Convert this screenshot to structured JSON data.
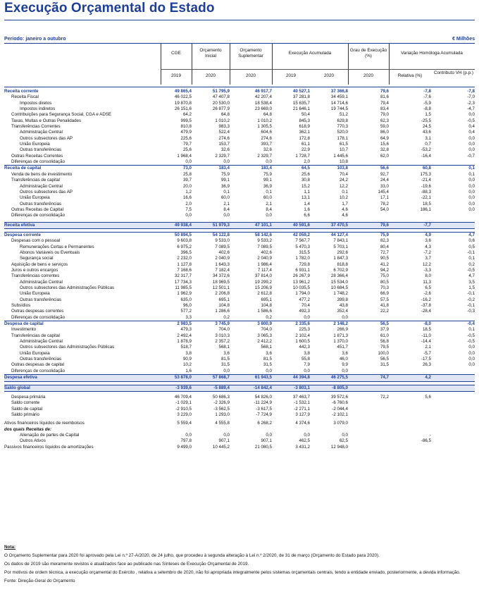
{
  "title": "Execução Orçamental do Estado",
  "period": "Período: janeiro a outubro",
  "units": "€ Milhões",
  "headers": {
    "cge": "CGE",
    "orc_inicial": "Orçamento Inicial",
    "orc_supl": "Orçamento Suplementar",
    "exec_acum": "Execução Acumulada",
    "grau_exec": "Grau de Execução (%)",
    "var_homologa": "Variação Homóloga Acumulada",
    "y2019a": "2019",
    "y2020a": "2020",
    "y2020b": "2020",
    "y2019b": "2019",
    "y2020c": "2020",
    "y2020d": "2020",
    "relativa": "Relativa (%)",
    "contributo": "Contributo VH (p.p.)"
  },
  "rows": [
    {
      "label": "Receita corrente",
      "v": [
        "49 865,4",
        "51 795,9",
        "46 917,7",
        "40 527,1",
        "37 366,8",
        "79,6",
        "-7,8",
        "-7,8"
      ],
      "style": "bold",
      "ind": 0
    },
    {
      "label": "Receita Fiscal",
      "v": [
        "46 022,5",
        "47 407,8",
        "42 207,4",
        "37 281,8",
        "34 459,1",
        "81,6",
        "-7,6",
        "-7,0"
      ],
      "ind": 1
    },
    {
      "label": "Impostos diretos",
      "v": [
        "19 870,8",
        "20 530,0",
        "18 538,4",
        "15 635,7",
        "14 714,6",
        "79,4",
        "-5,9",
        "-2,3"
      ],
      "ind": 2
    },
    {
      "label": "Impostos indiretos",
      "v": [
        "26 151,6",
        "26 877,9",
        "23 669,0",
        "21 646,1",
        "19 744,5",
        "83,4",
        "-8,8",
        "-4,7"
      ],
      "ind": 2
    },
    {
      "label": "Contribuições para Segurança Social, CGA e ADSE",
      "v": [
        "64,2",
        "64,8",
        "64,8",
        "50,4",
        "51,2",
        "79,0",
        "1,5",
        "0,0"
      ],
      "ind": 1
    },
    {
      "label": "Taxas, Multas e Outras Penalidades",
      "v": [
        "999,5",
        "1 010,2",
        "1 010,2",
        "845,3",
        "629,8",
        "62,3",
        "-25,5",
        "-0,5"
      ],
      "ind": 1
    },
    {
      "label": "Transferências Correntes",
      "v": [
        "810,8",
        "983,3",
        "1 305,5",
        "618,9",
        "770,3",
        "59,0",
        "24,5",
        "0,4"
      ],
      "ind": 1
    },
    {
      "label": "Administração Central",
      "v": [
        "479,9",
        "522,4",
        "604,6",
        "362,1",
        "520,0",
        "86,0",
        "43,6",
        "0,4"
      ],
      "ind": 2
    },
    {
      "label": "Outros subsectores das AP",
      "v": [
        "225,6",
        "274,6",
        "274,6",
        "172,8",
        "178,1",
        "64,9",
        "3,1",
        "0,0"
      ],
      "ind": 2
    },
    {
      "label": "União Europeia",
      "v": [
        "79,7",
        "153,7",
        "393,7",
        "61,1",
        "61,5",
        "15,6",
        "0,7",
        "0,0"
      ],
      "ind": 2
    },
    {
      "label": "Outras transferências",
      "v": [
        "25,6",
        "32,6",
        "32,6",
        "22,9",
        "10,7",
        "32,8",
        "-53,2",
        "0,0"
      ],
      "ind": 2
    },
    {
      "label": "Outras Receitas Correntes",
      "v": [
        "1 968,4",
        "2 329,7",
        "2 329,7",
        "1 728,7",
        "1 445,6",
        "62,0",
        "-16,4",
        "-0,7"
      ],
      "ind": 1
    },
    {
      "label": "Diferenças de consolidação",
      "v": [
        "0,0",
        "0,0",
        "0,0",
        "2,0",
        "10,8",
        "",
        "",
        ""
      ],
      "ind": 1
    },
    {
      "label": "Receita de capital",
      "v": [
        "73,0",
        "183,4",
        "183,4",
        "64,5",
        "103,8",
        "56,6",
        "60,8",
        "0,1"
      ],
      "style": "bold",
      "ind": 0
    },
    {
      "label": "Venda de bens de investimento",
      "v": [
        "25,8",
        "75,9",
        "75,9",
        "25,6",
        "70,4",
        "92,7",
        "175,3",
        "0,1"
      ],
      "ind": 1
    },
    {
      "label": "Transferências de capital",
      "v": [
        "39,7",
        "99,1",
        "99,1",
        "30,8",
        "24,2",
        "24,4",
        "-21,4",
        "0,0"
      ],
      "ind": 1
    },
    {
      "label": "Administração Central",
      "v": [
        "20,0",
        "36,9",
        "36,9",
        "15,2",
        "12,2",
        "33,0",
        "-19,6",
        "0,0"
      ],
      "ind": 2
    },
    {
      "label": "Outros subsectores das AP",
      "v": [
        "1,2",
        "0,1",
        "0,1",
        "1,1",
        "0,1",
        "145,4",
        "-88,3",
        "0,0"
      ],
      "ind": 2
    },
    {
      "label": "União Europeia",
      "v": [
        "16,6",
        "60,0",
        "60,0",
        "13,1",
        "10,2",
        "17,1",
        "-22,1",
        "0,0"
      ],
      "ind": 2
    },
    {
      "label": "Outras transferências",
      "v": [
        "2,0",
        "2,1",
        "2,1",
        "1,4",
        "1,7",
        "78,2",
        "18,5",
        "0,0"
      ],
      "ind": 2
    },
    {
      "label": "Outras Receitas de Capital",
      "v": [
        "7,5",
        "8,4",
        "8,4",
        "1,6",
        "4,6",
        "54,0",
        "186,1",
        "0,0"
      ],
      "ind": 1
    },
    {
      "label": "Diferenças de consolidação",
      "v": [
        "0,0",
        "0,0",
        "0,0",
        "6,6",
        "4,6",
        "",
        "",
        ""
      ],
      "ind": 1
    },
    {
      "gap": true
    },
    {
      "label": "Receita efetiva",
      "v": [
        "49 938,4",
        "51 979,3",
        "47 101,1",
        "40 591,6",
        "37 470,5",
        "79,6",
        "-7,7",
        ""
      ],
      "style": "shade",
      "ind": 0
    },
    {
      "gap": true
    },
    {
      "label": "Despesa corrente",
      "v": [
        "50 894,5",
        "54 122,8",
        "58 142,6",
        "42 059,2",
        "44 127,4",
        "75,9",
        "4,9",
        "4,7"
      ],
      "style": "bold",
      "ind": 0
    },
    {
      "label": "Despesas com o pessoal",
      "v": [
        "9 603,8",
        "9 533,0",
        "9 533,2",
        "7 567,7",
        "7 843,1",
        "82,3",
        "3,6",
        "0,6"
      ],
      "ind": 1
    },
    {
      "label": "Remunerações Certas e Permanentes",
      "v": [
        "6 975,2",
        "7 089,5",
        "7 089,5",
        "5 470,3",
        "5 703,1",
        "80,4",
        "4,3",
        "0,5"
      ],
      "ind": 2
    },
    {
      "label": "Abonos Variáveis ou Eventuais",
      "v": [
        "396,5",
        "402,6",
        "402,6",
        "315,5",
        "292,6",
        "72,7",
        "-7,2",
        "-0,1"
      ],
      "ind": 2
    },
    {
      "label": "Segurança social",
      "v": [
        "2 232,0",
        "2 040,9",
        "2 040,9",
        "1 782,0",
        "1 847,3",
        "90,5",
        "3,7",
        "0,1"
      ],
      "ind": 2
    },
    {
      "label": "Aquisição de bens e serviços",
      "v": [
        "1 127,8",
        "1 643,3",
        "1 986,4",
        "729,8",
        "818,8",
        "41,2",
        "12,2",
        "0,2"
      ],
      "ind": 1
    },
    {
      "label": "Juros e outros encargos",
      "v": [
        "7 168,6",
        "7 182,4",
        "7 117,4",
        "6 931,1",
        "6 702,9",
        "94,2",
        "-3,3",
        "-0,5"
      ],
      "ind": 1
    },
    {
      "label": "Transferências correntes",
      "v": [
        "32 317,7",
        "34 372,6",
        "37 814,0",
        "26 267,9",
        "28 366,4",
        "75,0",
        "8,0",
        "4,7"
      ],
      "ind": 1
    },
    {
      "label": "Administração Central",
      "v": [
        "17 734,3",
        "18 969,5",
        "19 299,2",
        "13 961,2",
        "15 534,0",
        "80,5",
        "11,3",
        "3,5"
      ],
      "ind": 2
    },
    {
      "label": "Outros subsectores das Administrações Públicas",
      "v": [
        "11 985,5",
        "12 501,1",
        "15 206,9",
        "10 035,5",
        "10 684,5",
        "70,3",
        "6,5",
        "1,5"
      ],
      "ind": 2
    },
    {
      "label": "União Europeia",
      "v": [
        "1 962,9",
        "2 206,8",
        "2 612,8",
        "1 794,0",
        "1 748,2",
        "66,9",
        "-2,6",
        "-0,1"
      ],
      "ind": 2
    },
    {
      "label": "Outras transferências",
      "v": [
        "635,0",
        "695,1",
        "695,1",
        "477,2",
        "399,8",
        "57,5",
        "-16,2",
        "-0,2"
      ],
      "ind": 2
    },
    {
      "label": "Subsídios",
      "v": [
        "96,0",
        "104,8",
        "104,8",
        "70,4",
        "43,8",
        "41,8",
        "-37,8",
        "-0,1"
      ],
      "ind": 1
    },
    {
      "label": "Outras despesas correntes",
      "v": [
        "577,2",
        "1 286,6",
        "1 586,6",
        "492,3",
        "352,4",
        "22,2",
        "-28,4",
        "-0,3"
      ],
      "ind": 1
    },
    {
      "label": "Diferenças de consolidação",
      "v": [
        "3,3",
        "0,2",
        "0,2",
        "0,0",
        "0,0",
        "",
        "",
        ""
      ],
      "ind": 1
    },
    {
      "label": "Despesa de capital",
      "v": [
        "2 983,5",
        "3 745,9",
        "3 800,9",
        "2 335,6",
        "2 148,2",
        "56,5",
        "-8,0",
        "-0,4"
      ],
      "style": "bold",
      "ind": 0
    },
    {
      "label": "Investimento",
      "v": [
        "479,3",
        "704,0",
        "704,0",
        "225,3",
        "266,9",
        "37,9",
        "18,5",
        "0,1"
      ],
      "ind": 1
    },
    {
      "label": "Transferências de capital",
      "v": [
        "2 492,4",
        "3 010,3",
        "3 065,3",
        "2 102,4",
        "1 871,3",
        "61,0",
        "-11,0",
        "-0,5"
      ],
      "ind": 1
    },
    {
      "label": "Administração Central",
      "v": [
        "1 878,9",
        "2 357,2",
        "2 412,2",
        "1 600,5",
        "1 370,0",
        "56,8",
        "-14,4",
        "-0,5"
      ],
      "ind": 2
    },
    {
      "label": "Outros subsectores das Administrações Públicas",
      "v": [
        "518,7",
        "568,1",
        "568,1",
        "442,3",
        "451,7",
        "79,5",
        "2,1",
        "0,0"
      ],
      "ind": 2
    },
    {
      "label": "União Europeia",
      "v": [
        "3,8",
        "3,6",
        "3,6",
        "3,8",
        "3,6",
        "100,0",
        "-5,7",
        "0,0"
      ],
      "ind": 2
    },
    {
      "label": "Outras transferências",
      "v": [
        "90,9",
        "81,5",
        "81,5",
        "55,8",
        "46,0",
        "56,5",
        "-17,5",
        "0,0"
      ],
      "ind": 2
    },
    {
      "label": "Outras despesas de capital",
      "v": [
        "10,2",
        "31,5",
        "31,5",
        "7,9",
        "9,9",
        "31,5",
        "26,3",
        "0,0"
      ],
      "ind": 1
    },
    {
      "label": "Diferenças de consolidação",
      "v": [
        "1,6",
        "0,0",
        "0,0",
        "0,0",
        "0,0",
        "",
        "",
        ""
      ],
      "ind": 1
    },
    {
      "label": "Despesa efetiva",
      "v": [
        "53 878,0",
        "57 868,7",
        "61 943,5",
        "44 394,8",
        "46 275,5",
        "74,7",
        "4,2",
        ""
      ],
      "style": "shade",
      "ind": 0
    },
    {
      "gap": true
    },
    {
      "label": "Saldo global",
      "v": [
        "-3 939,6",
        "-5 889,4",
        "-14 842,4",
        "-3 803,1",
        "-8 805,0",
        "",
        "",
        ""
      ],
      "style": "shade",
      "ind": 0
    },
    {
      "gap": true
    },
    {
      "label": "Despesa  primária",
      "v": [
        "46 709,4",
        "50 686,3",
        "54 826,0",
        "37 463,7",
        "39 572,6",
        "72,2",
        "5,6",
        ""
      ],
      "ind": 1
    },
    {
      "label": "Saldo corrente",
      "v": [
        "-1 029,1",
        "-2 326,9",
        "-11 224,9",
        "-1 532,1",
        "-6 760,6",
        "",
        "",
        ""
      ],
      "ind": 1
    },
    {
      "label": "Saldo de capital",
      "v": [
        "-2 910,5",
        "-3 562,5",
        "-3 617,5",
        "-2 271,1",
        "-2 044,4",
        "",
        "",
        ""
      ],
      "ind": 1
    },
    {
      "label": "Saldo primário",
      "v": [
        "3 229,0",
        "1 293,0",
        "-7 724,9",
        "3 127,9",
        "-2 102,1",
        "",
        "",
        ""
      ],
      "ind": 1
    },
    {
      "gap": true
    },
    {
      "label": "Ativos financeiros líquidos de reembolsos",
      "v": [
        "5 559,4",
        "4 555,8",
        "6 268,2",
        "4 374,6",
        "3 079,0",
        "",
        "",
        ""
      ],
      "ind": 0
    },
    {
      "label": "dos quais Receitas de:",
      "v": [
        "",
        "",
        "",
        "",
        "",
        "",
        "",
        ""
      ],
      "ind": 0,
      "italic": true
    },
    {
      "label": "Alienação de partes de Capital",
      "v": [
        "0,0",
        "0,0",
        "0,0",
        "0,0",
        "0,0",
        "",
        "-",
        ""
      ],
      "ind": 2
    },
    {
      "label": "Outros Ativos",
      "v": [
        "797,8",
        "907,1",
        "907,1",
        "462,5",
        "62,5",
        "",
        "-86,5",
        ""
      ],
      "ind": 2
    },
    {
      "label": "Passivos financeiros líquidos de amortizações",
      "v": [
        "9 499,0",
        "10 445,2",
        "21 080,5",
        "3 431,2",
        "12 948,0",
        "",
        "",
        ""
      ],
      "ind": 0
    }
  ],
  "notes": {
    "heading": "Nota:",
    "n1": "O Orçamento Suplementar para 2020 foi aprovado pela Lei n.º 27-A/2020, de 24 julho, que procedeu à segunda alteração à Lei n.º 2/2020, de 31 de março (Orçamento do Estado para 2020).",
    "n2": "Os dados de 2019 são meramente revistos e atualizados face ao publicado nas Sínteses de Execução Orçamental de 2019.",
    "n3": "Por motivos de ordem técnica, a execução orçamental do Exército , relativa a setembro de 2020, não foi apropriada integralmente pelos sistemas orçamentais centrais, tendo a entidade enviado, posteriormente, a devida informação.",
    "source": "Fonte: Direção-Geral do Orçamento"
  },
  "colors": {
    "accent": "#1f3f97",
    "shade": "#dfe5f3"
  }
}
